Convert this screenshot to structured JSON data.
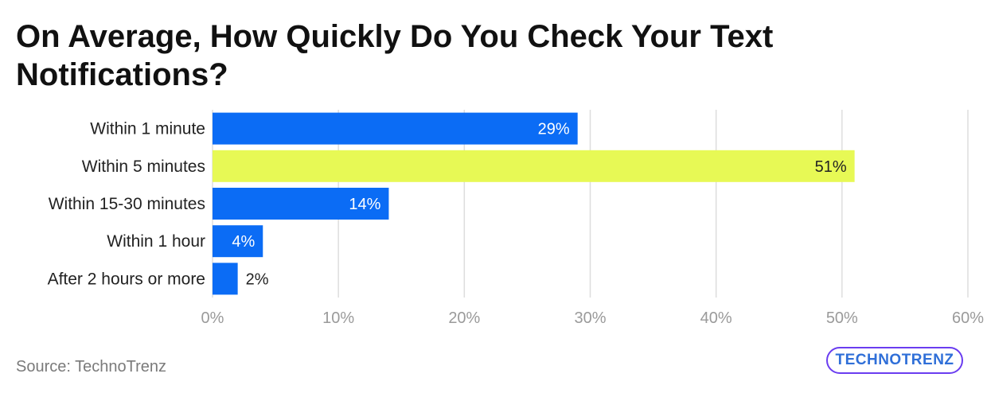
{
  "title": "On Average, How Quickly Do You Check Your Text Notifications?",
  "source": "Source: TechnoTrenz",
  "logo": {
    "text": "TECHNOTRENZ"
  },
  "colors": {
    "bar_default": "#0b6cf5",
    "bar_highlight": "#e7f955",
    "grid": "#dddddd",
    "tick_label": "#9a9a9a",
    "category_label": "#222222",
    "logo_border": "#6a3df0",
    "logo_text": "#2f6fd8"
  },
  "chart_data": {
    "type": "bar",
    "orientation": "horizontal",
    "categories": [
      "Within 1 minute",
      "Within 5 minutes",
      "Within 15-30 minutes",
      "Within 1 hour",
      "After 2 hours or more"
    ],
    "values": [
      29,
      51,
      14,
      4,
      2
    ],
    "data_labels": [
      "29%",
      "51%",
      "14%",
      "4%",
      "2%"
    ],
    "highlight_index": 1,
    "xlim": [
      0,
      60
    ],
    "xticks": [
      0,
      10,
      20,
      30,
      40,
      50,
      60
    ],
    "xtick_labels": [
      "0%",
      "10%",
      "20%",
      "30%",
      "40%",
      "50%",
      "60%"
    ],
    "grid": true,
    "legend": "none",
    "xlabel": "",
    "ylabel": ""
  }
}
